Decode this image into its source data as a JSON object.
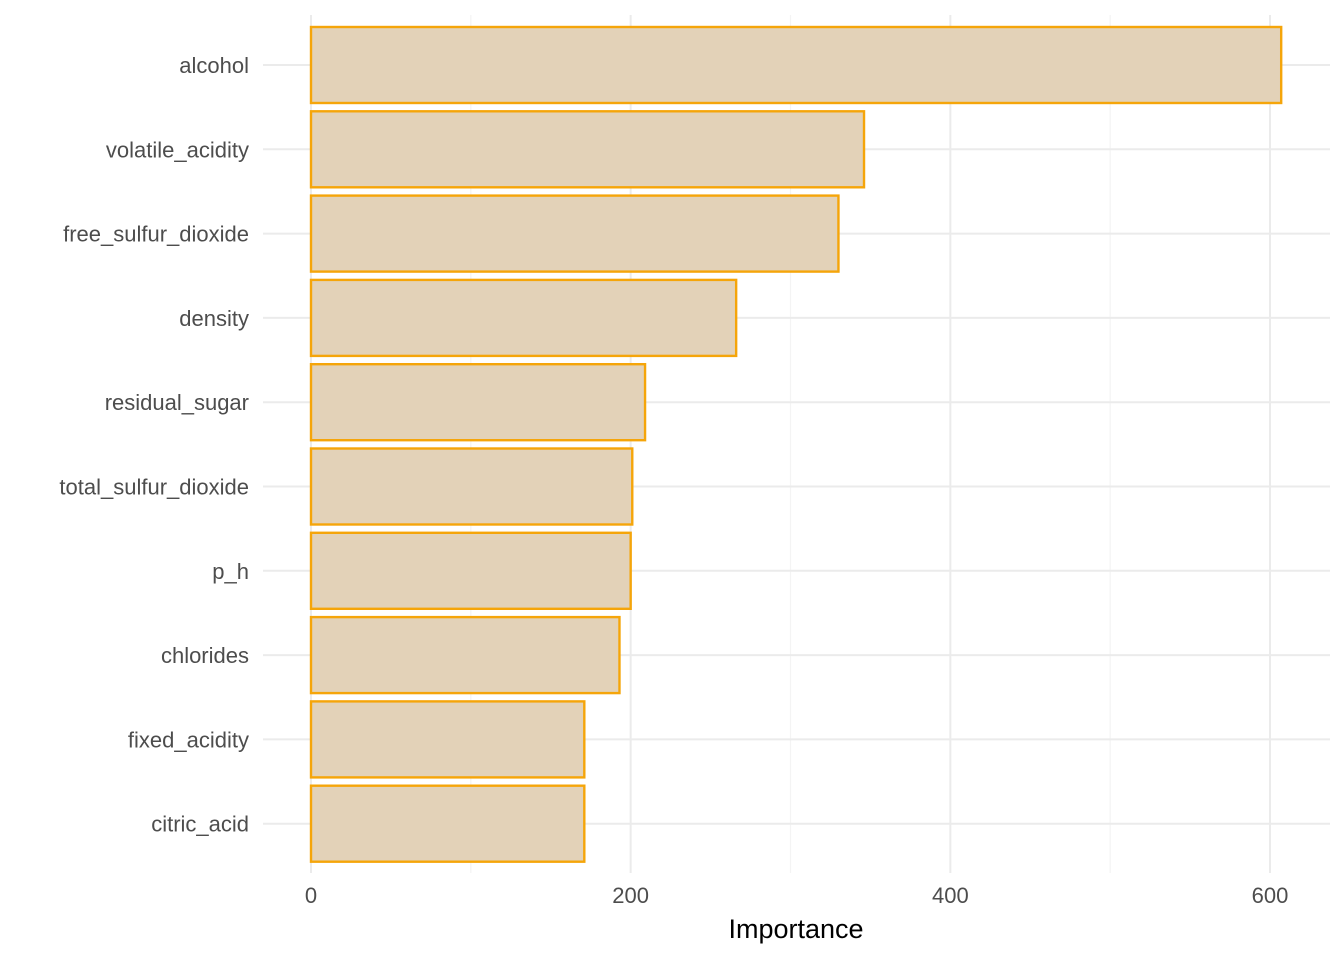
{
  "chart_data": {
    "type": "bar",
    "orientation": "horizontal",
    "title": "",
    "xlabel": "Importance",
    "ylabel": "",
    "categories": [
      "alcohol",
      "volatile_acidity",
      "free_sulfur_dioxide",
      "density",
      "residual_sugar",
      "total_sulfur_dioxide",
      "p_h",
      "chlorides",
      "fixed_acidity",
      "citric_acid"
    ],
    "values": [
      607,
      346,
      330,
      266,
      209,
      201,
      200,
      193,
      171,
      171
    ],
    "xlim": [
      -30,
      637
    ],
    "xticks": [
      0,
      200,
      400,
      600
    ],
    "xtick_labels": [
      "0",
      "200",
      "400",
      "600"
    ],
    "grid": true,
    "legend": "none",
    "colors": {
      "bar_fill": "#e3d2b8",
      "bar_stroke": "#f5a50a",
      "grid_major": "#ebebeb",
      "grid_minor": "#f4f4f4",
      "text": "#4d4d4d"
    }
  }
}
